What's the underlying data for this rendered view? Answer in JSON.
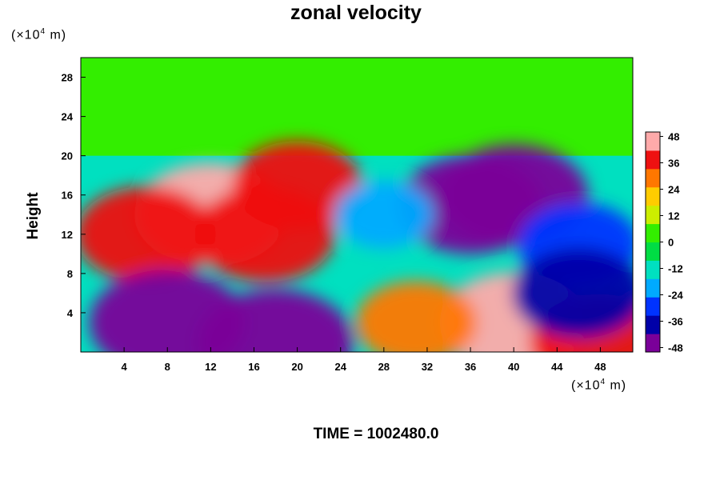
{
  "chart_data": {
    "type": "heatmap",
    "title": "zonal velocity",
    "ylabel": "Height",
    "xlabel": "",
    "y_unit": {
      "base": "(×10",
      "exp": "4",
      "rest": " m)"
    },
    "x_unit": {
      "base": "(×10",
      "exp": "4",
      "rest": " m)"
    },
    "xlim": [
      0,
      51
    ],
    "ylim": [
      0,
      30
    ],
    "x_ticks": [
      "4",
      "8",
      "12",
      "16",
      "20",
      "24",
      "28",
      "32",
      "36",
      "40",
      "44",
      "48"
    ],
    "y_ticks": [
      "4",
      "8",
      "12",
      "16",
      "20",
      "24",
      "28"
    ],
    "colorbar": {
      "min": -50,
      "max": 50,
      "tick_labels": [
        "48",
        "36",
        "24",
        "12",
        "0",
        "-12",
        "-24",
        "-36",
        "-48"
      ],
      "colors": [
        "#7a0099",
        "#0000a8",
        "#0033ff",
        "#00aaff",
        "#00e0c0",
        "#00dd44",
        "#33ee00",
        "#ccee00",
        "#ffcc00",
        "#ff7700",
        "#ee1111",
        "#ffaaaa"
      ]
    },
    "features": [
      {
        "x": 26,
        "y": 25,
        "u": 2
      },
      {
        "x": 12,
        "y": 14,
        "u": 46
      },
      {
        "x": 6,
        "y": 12,
        "u": 40
      },
      {
        "x": 17,
        "y": 12,
        "u": 40
      },
      {
        "x": 20,
        "y": 17,
        "u": 34
      },
      {
        "x": 40,
        "y": 16,
        "u": -44
      },
      {
        "x": 36,
        "y": 15,
        "u": -42
      },
      {
        "x": 46,
        "y": 11,
        "u": -30
      },
      {
        "x": 28,
        "y": 14,
        "u": -18
      },
      {
        "x": 8,
        "y": 3,
        "u": -48
      },
      {
        "x": 18,
        "y": 1,
        "u": -48
      },
      {
        "x": 40,
        "y": 3,
        "u": 44
      },
      {
        "x": 48,
        "y": 1,
        "u": 40
      },
      {
        "x": 31,
        "y": 3,
        "u": 30
      },
      {
        "x": 46,
        "y": 6,
        "u": -36
      }
    ]
  },
  "time_label": "TIME = 1002480.0"
}
